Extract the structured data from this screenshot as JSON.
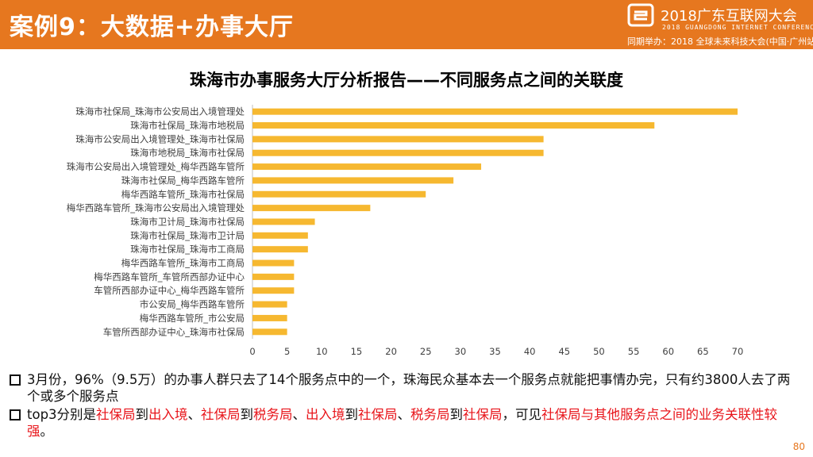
{
  "header": {
    "title": "案例9：大数据+办事大厅",
    "conference_title": "2018广东互联网大会",
    "conference_subtitle": "2018 GUANGDONG INTERNET CONFERENCE",
    "conference_note": "同期举办：2018 全球未来科技大会(中国·广州站)",
    "brand_color": "#e6771f"
  },
  "chart_data": {
    "type": "bar",
    "orientation": "horizontal",
    "title": "珠海市办事服务大厅分析报告——不同服务点之间的关联度",
    "categories": [
      "珠海市社保局_珠海市公安局出入境管理处",
      "珠海市社保局_珠海市地税局",
      "珠海市公安局出入境管理处_珠海市社保局",
      "珠海市地税局_珠海市社保局",
      "珠海市公安局出入境管理处_梅华西路车管所",
      "珠海市社保局_梅华西路车管所",
      "梅华西路车管所_珠海市社保局",
      "梅华西路车管所_珠海市公安局出入境管理处",
      "珠海市卫计局_珠海市社保局",
      "珠海市社保局_珠海市卫计局",
      "珠海市社保局_珠海市工商局",
      "梅华西路车管所_珠海市工商局",
      "梅华西路车管所_车管所西部办证中心",
      "车管所西部办证中心_梅华西路车管所",
      "市公安局_梅华西路车管所",
      "梅华西路车管所_市公安局",
      "车管所西部办证中心_珠海市社保局"
    ],
    "values": [
      70,
      58,
      42,
      42,
      33,
      29,
      25,
      17,
      9,
      8,
      8,
      6,
      6,
      6,
      5,
      5,
      5
    ],
    "xlim": [
      0,
      70
    ],
    "xticks": [
      0,
      5,
      10,
      15,
      20,
      25,
      30,
      35,
      40,
      45,
      50,
      55,
      60,
      65,
      70
    ],
    "bar_color": "#f6b830",
    "grid": false,
    "legend": "none"
  },
  "bullets": [
    {
      "segments": [
        {
          "text": "3月份，96%（9.5万）的办事人群只去了14个服务点中的一个，珠海民众基本去一个服务点就能把事情办完，只有约3800人去了两个或多个服务点",
          "highlight": false
        }
      ]
    },
    {
      "segments": [
        {
          "text": "top3分别是",
          "highlight": false
        },
        {
          "text": "社保局",
          "highlight": true
        },
        {
          "text": "到",
          "highlight": false
        },
        {
          "text": "出入境",
          "highlight": true
        },
        {
          "text": "、",
          "highlight": false
        },
        {
          "text": "社保局",
          "highlight": true
        },
        {
          "text": "到",
          "highlight": false
        },
        {
          "text": "税务局",
          "highlight": true
        },
        {
          "text": "、",
          "highlight": false
        },
        {
          "text": "出入境",
          "highlight": true
        },
        {
          "text": "到",
          "highlight": false
        },
        {
          "text": "社保局",
          "highlight": true
        },
        {
          "text": "、",
          "highlight": false
        },
        {
          "text": "税务局",
          "highlight": true
        },
        {
          "text": "到",
          "highlight": false
        },
        {
          "text": "社保局",
          "highlight": true
        },
        {
          "text": "，可见",
          "highlight": false
        },
        {
          "text": "社保局与其他服务点之间的业务关联性较强",
          "highlight": true
        },
        {
          "text": "。",
          "highlight": false
        }
      ]
    }
  ],
  "page_number": "80",
  "highlight_color": "#e8141a"
}
